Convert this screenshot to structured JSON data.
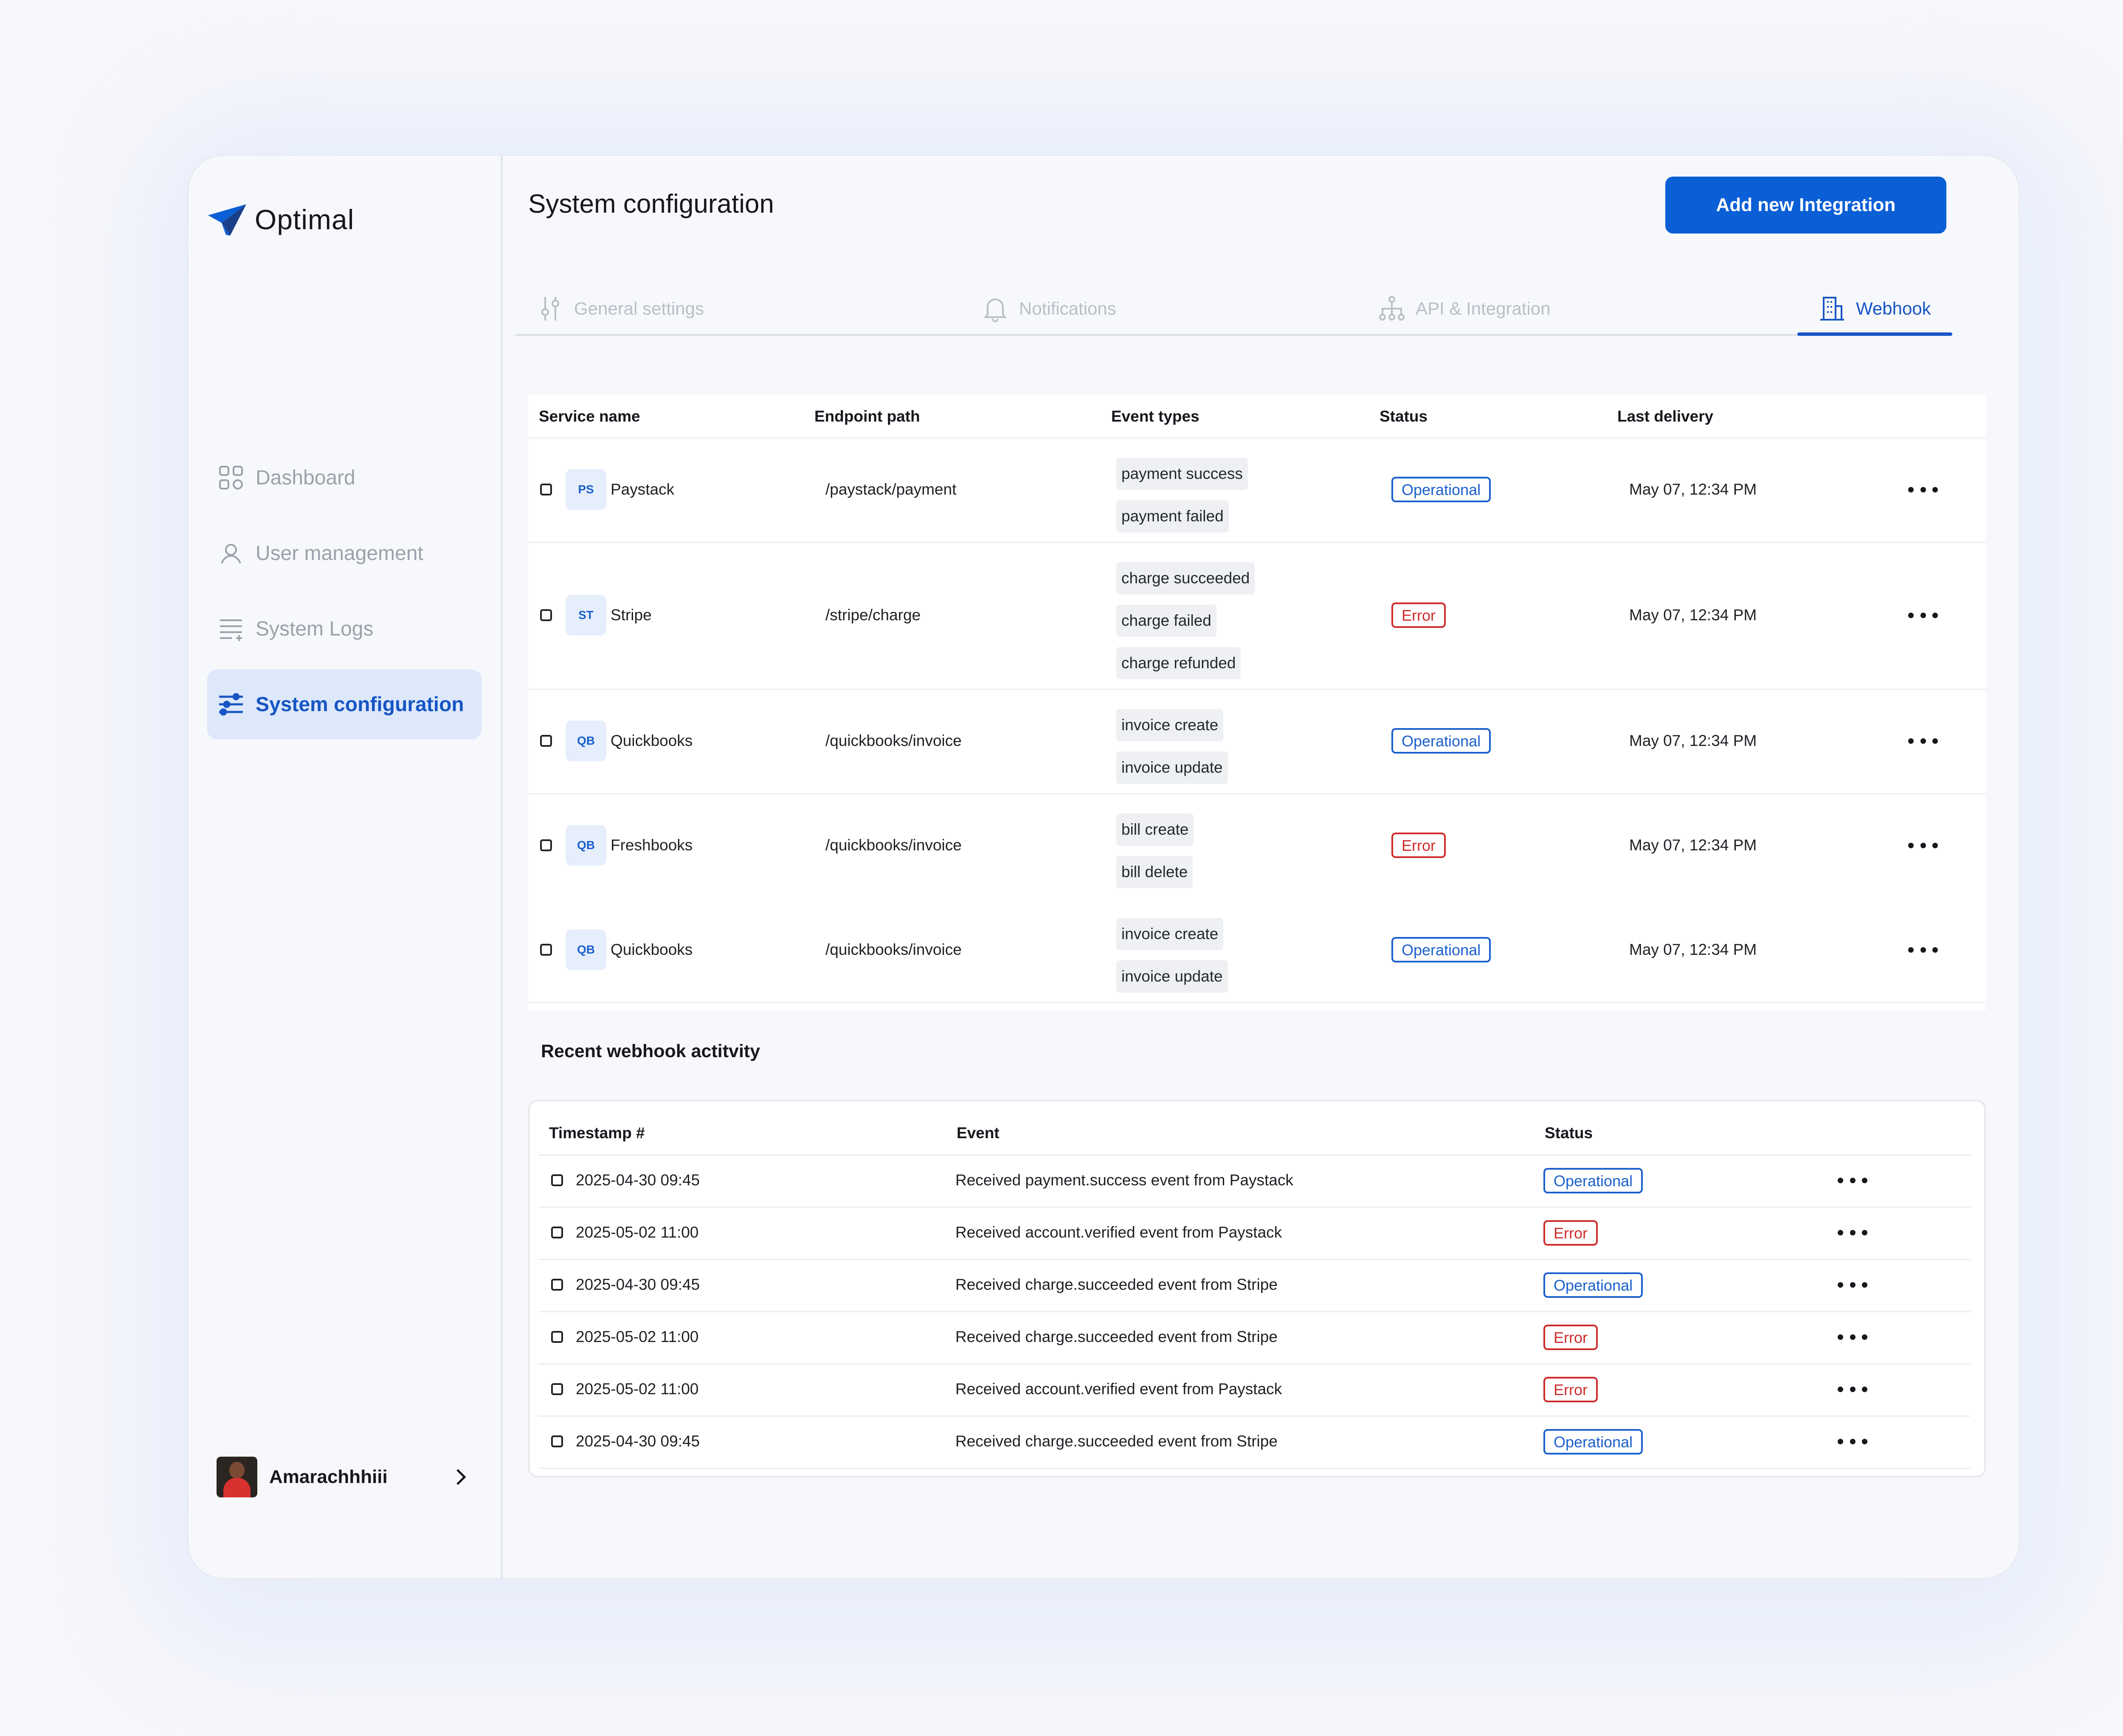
{
  "app": {
    "brand": "Optimal"
  },
  "sidebar": {
    "items": [
      {
        "label": "Dashboard",
        "icon": "grid-icon"
      },
      {
        "label": "User management",
        "icon": "user-icon"
      },
      {
        "label": "System Logs",
        "icon": "list-icon"
      },
      {
        "label": "System configuration",
        "icon": "sliders-icon",
        "active": true
      }
    ],
    "profile": {
      "name": "Amarachhhiii"
    }
  },
  "header": {
    "title": "System configuration",
    "add_button": "Add new Integration"
  },
  "tabs": [
    {
      "label": "General settings",
      "icon": "settings-sliders-icon"
    },
    {
      "label": "Notifications",
      "icon": "bell-icon"
    },
    {
      "label": "API & Integration",
      "icon": "api-tree-icon"
    },
    {
      "label": "Webhook",
      "icon": "building-icon",
      "active": true
    }
  ],
  "integrations": {
    "headers": [
      "Service name",
      "Endpoint path",
      "Event types",
      "Status",
      "Last delivery"
    ],
    "rows": [
      {
        "abbr": "PS",
        "name": "Paystack",
        "endpoint": "/paystack/payment",
        "events": [
          "payment success",
          "payment failed"
        ],
        "status": "Operational",
        "last_delivery": "May 07, 12:34 PM"
      },
      {
        "abbr": "ST",
        "name": "Stripe",
        "endpoint": "/stripe/charge",
        "events": [
          "charge succeeded",
          "charge failed",
          "charge refunded"
        ],
        "status": "Error",
        "last_delivery": "May 07, 12:34 PM"
      },
      {
        "abbr": "QB",
        "name": "Quickbooks",
        "endpoint": "/quickbooks/invoice",
        "events": [
          "invoice create",
          "invoice update"
        ],
        "status": "Operational",
        "last_delivery": "May 07, 12:34 PM"
      },
      {
        "abbr": "QB",
        "name": "Freshbooks",
        "endpoint": "/quickbooks/invoice",
        "events": [
          "bill create",
          "bill delete"
        ],
        "status": "Error",
        "last_delivery": "May 07, 12:34 PM"
      },
      {
        "abbr": "QB",
        "name": "Quickbooks",
        "endpoint": "/quickbooks/invoice",
        "events": [
          "invoice create",
          "invoice update"
        ],
        "status": "Operational",
        "last_delivery": "May 07, 12:34 PM"
      }
    ]
  },
  "activity": {
    "title": "Recent webhook actitvity",
    "headers": [
      "Timestamp #",
      "Event",
      "Status"
    ],
    "rows": [
      {
        "timestamp": "2025-04-30 09:45",
        "event": "Received payment.success event from Paystack",
        "status": "Operational"
      },
      {
        "timestamp": "2025-05-02 11:00",
        "event": "Received account.verified event from Paystack",
        "status": "Error"
      },
      {
        "timestamp": "2025-04-30 09:45",
        "event": "Received charge.succeeded event from Stripe",
        "status": "Operational"
      },
      {
        "timestamp": "2025-05-02 11:00",
        "event": "Received charge.succeeded event from Stripe",
        "status": "Error"
      },
      {
        "timestamp": "2025-05-02 11:00",
        "event": "Received account.verified event from Paystack",
        "status": "Error"
      },
      {
        "timestamp": "2025-04-30 09:45",
        "event": "Received charge.succeeded event from Stripe",
        "status": "Operational"
      }
    ]
  },
  "colors": {
    "accent": "#0b5fd6",
    "active_bg": "#dde8fb",
    "operational": "#1a5fcc",
    "error": "#cf2a2a"
  }
}
